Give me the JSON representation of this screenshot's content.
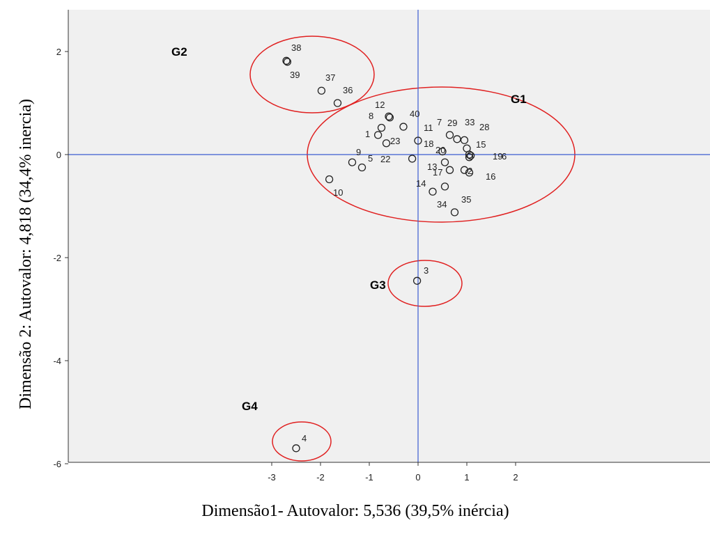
{
  "chart_data": {
    "type": "scatter",
    "title": "",
    "xlabel": "Dimensão1- Autovalor: 5,536 (39,5% inércia)",
    "ylabel": "Dimensão 2: Autovalor: 4,818  (34,4% inercia)",
    "xlim": [
      -7.2,
      6.0
    ],
    "ylim": [
      -6.0,
      2.8
    ],
    "x_ticks": [
      -3,
      -2,
      -1,
      0,
      1,
      2
    ],
    "x_tick_labels": [
      "-3",
      "-2",
      "-1",
      "0",
      "1",
      "2"
    ],
    "y_ticks": [
      2,
      0,
      -2,
      -4,
      -6
    ],
    "y_tick_labels": [
      "2",
      "0",
      "-2",
      "-4",
      "-6"
    ],
    "reference_lines": {
      "x": 0,
      "y": 0
    },
    "grid": false,
    "colors": {
      "plot_background": "#f0f0f0",
      "reference_line": "#3a5bd0",
      "group_ellipse": "#e02020",
      "marker": "#222222"
    },
    "points": [
      {
        "label": "38",
        "x": -2.7,
        "y": 1.82
      },
      {
        "label": "39",
        "x": -2.68,
        "y": 1.8
      },
      {
        "label": "37",
        "x": -1.98,
        "y": 1.24
      },
      {
        "label": "36",
        "x": -1.65,
        "y": 1.0
      },
      {
        "label": "12",
        "x": -0.6,
        "y": 0.74
      },
      {
        "label": "40",
        "x": -0.58,
        "y": 0.72
      },
      {
        "label": "8",
        "x": -0.75,
        "y": 0.52
      },
      {
        "label": "1",
        "x": -0.82,
        "y": 0.38
      },
      {
        "label": "23",
        "x": -0.65,
        "y": 0.22
      },
      {
        "label": "11",
        "x": -0.3,
        "y": 0.54
      },
      {
        "label": "18",
        "x": 0.0,
        "y": 0.27
      },
      {
        "label": "9",
        "x": -1.35,
        "y": -0.15
      },
      {
        "label": "5",
        "x": -1.15,
        "y": -0.25
      },
      {
        "label": "22",
        "x": -0.12,
        "y": -0.08
      },
      {
        "label": "10",
        "x": -1.82,
        "y": -0.48
      },
      {
        "label": "7",
        "x": 0.65,
        "y": 0.38
      },
      {
        "label": "29",
        "x": 0.8,
        "y": 0.3
      },
      {
        "label": "33",
        "x": 0.95,
        "y": 0.28
      },
      {
        "label": "28",
        "x": 1.0,
        "y": 0.12
      },
      {
        "label": "15",
        "x": 1.05,
        "y": 0.0
      },
      {
        "label": "20",
        "x": 0.5,
        "y": 0.06
      },
      {
        "label": "19",
        "x": 1.08,
        "y": -0.02
      },
      {
        "label": "6",
        "x": 1.05,
        "y": -0.05
      },
      {
        "label": "13",
        "x": 0.55,
        "y": -0.15
      },
      {
        "label": "17",
        "x": 0.65,
        "y": -0.3
      },
      {
        "label": "2",
        "x": 0.95,
        "y": -0.3
      },
      {
        "label": "16",
        "x": 1.05,
        "y": -0.35
      },
      {
        "label": "14",
        "x": 0.3,
        "y": -0.72
      },
      {
        "label": "34",
        "x": 0.55,
        "y": -0.62
      },
      {
        "label": "35",
        "x": 0.75,
        "y": -1.12
      },
      {
        "label": "3",
        "x": -0.02,
        "y": -2.45
      },
      {
        "label": "4",
        "x": -2.5,
        "y": -5.7
      }
    ],
    "annotations": [
      {
        "text": "G1"
      },
      {
        "text": "G2"
      },
      {
        "text": "G3"
      },
      {
        "text": "G4"
      }
    ]
  }
}
